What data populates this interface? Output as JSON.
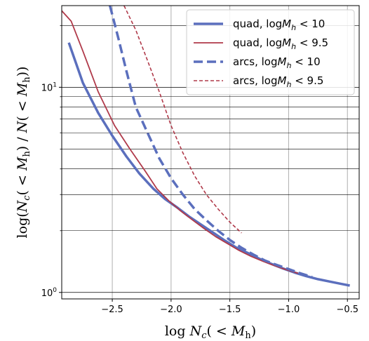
{
  "chart_data": {
    "type": "line",
    "xlabel": "log N_c( < M_h)",
    "ylabel": "log(N_c( < M_h) / N( < M_h))",
    "xlim": [
      -2.93,
      -0.4
    ],
    "ylim": [
      0.93,
      25
    ],
    "yscale": "log",
    "grid": true,
    "legend_position": "top-right",
    "x_ticks": [
      {
        "value": -2.5,
        "label": "−2.5"
      },
      {
        "value": -2.0,
        "label": "−2.0"
      },
      {
        "value": -1.5,
        "label": "−1.5"
      },
      {
        "value": -1.0,
        "label": "−1.0"
      },
      {
        "value": -0.5,
        "label": "−0.5"
      }
    ],
    "y_major_ticks": [
      {
        "value": 1,
        "label": "10^0"
      },
      {
        "value": 10,
        "label": "10^1"
      }
    ],
    "y_minor_ticks": [
      2,
      3,
      4,
      5,
      6,
      7,
      8,
      9,
      20
    ],
    "series": [
      {
        "name": "quad, logM_h < 10",
        "color": "#5b6fbd",
        "style": "solid",
        "width": 3.5,
        "x": [
          -2.87,
          -2.75,
          -2.62,
          -2.5,
          -2.38,
          -2.27,
          -2.15,
          -2.05,
          -1.95,
          -1.85,
          -1.75,
          -1.65,
          -1.55,
          -1.45,
          -1.35,
          -1.25,
          -1.15,
          -1.05,
          -0.95,
          -0.85,
          -0.75,
          -0.65,
          -0.55,
          -0.48
        ],
        "y": [
          16.5,
          10.5,
          7.5,
          5.8,
          4.6,
          3.8,
          3.2,
          2.85,
          2.6,
          2.35,
          2.15,
          1.97,
          1.8,
          1.66,
          1.56,
          1.46,
          1.38,
          1.31,
          1.25,
          1.2,
          1.16,
          1.13,
          1.1,
          1.08
        ]
      },
      {
        "name": "quad, logM_h < 9.5",
        "color": "#b03a4a",
        "style": "solid",
        "width": 1.8,
        "x": [
          -2.97,
          -2.85,
          -2.75,
          -2.62,
          -2.48,
          -2.35,
          -2.22,
          -2.12,
          -2.02,
          -1.92,
          -1.82,
          -1.72,
          -1.62,
          -1.52,
          -1.42,
          -1.32,
          -1.22,
          -1.12,
          -1.02,
          -0.92
        ],
        "y": [
          25.0,
          21.0,
          15.0,
          9.5,
          6.5,
          5.0,
          3.9,
          3.2,
          2.8,
          2.5,
          2.26,
          2.05,
          1.87,
          1.73,
          1.6,
          1.5,
          1.42,
          1.35,
          1.29,
          1.24
        ]
      },
      {
        "name": "arcs, logM_h < 10",
        "color": "#5b6fbd",
        "style": "dashed",
        "width": 3.5,
        "x": [
          -2.52,
          -2.45,
          -2.38,
          -2.3,
          -2.2,
          -2.1,
          -2.0,
          -1.9,
          -1.8,
          -1.7,
          -1.6,
          -1.5,
          -1.4,
          -1.3,
          -1.2,
          -1.1,
          -1.0,
          -0.9,
          -0.8
        ],
        "y": [
          25.0,
          17.5,
          12.0,
          8.0,
          6.0,
          4.5,
          3.6,
          3.0,
          2.55,
          2.25,
          2.0,
          1.8,
          1.65,
          1.53,
          1.43,
          1.36,
          1.3,
          1.24,
          1.19
        ]
      },
      {
        "name": "arcs, logM_h < 9.5",
        "color": "#b03a4a",
        "style": "dashed",
        "width": 1.6,
        "x": [
          -2.4,
          -2.3,
          -2.2,
          -2.1,
          -2.0,
          -1.9,
          -1.8,
          -1.7,
          -1.6,
          -1.5,
          -1.4
        ],
        "y": [
          25.0,
          19.0,
          13.5,
          9.5,
          6.5,
          4.8,
          3.7,
          3.0,
          2.55,
          2.2,
          1.95
        ]
      }
    ],
    "legend": [
      {
        "prefix": "quad, log",
        "var": "M",
        "sub": "h",
        "suffix": " < 10"
      },
      {
        "prefix": "quad, log",
        "var": "M",
        "sub": "h",
        "suffix": " < 9.5"
      },
      {
        "prefix": "arcs, log",
        "var": "M",
        "sub": "h",
        "suffix": " < 10"
      },
      {
        "prefix": "arcs, log",
        "var": "M",
        "sub": "h",
        "suffix": " < 9.5"
      }
    ]
  }
}
